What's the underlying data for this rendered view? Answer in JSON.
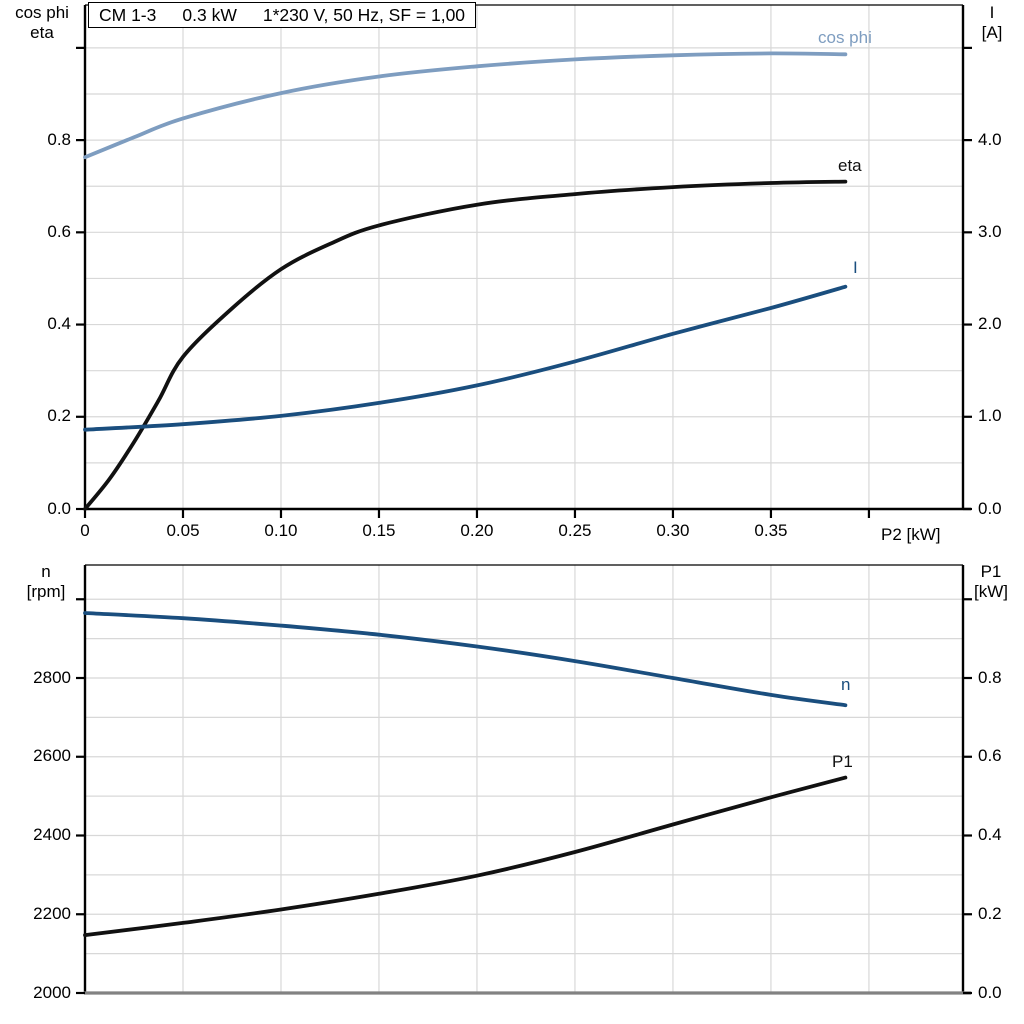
{
  "title_box": {
    "parts": [
      "CM 1-3",
      "0.3 kW",
      "1*230 V, 50 Hz, SF = 1,00"
    ]
  },
  "colors": {
    "light_blue": "#7e9dc0",
    "dark_blue": "#1a4e7e",
    "black": "#111111",
    "grid": "#d8d8d8",
    "axis": "#000000",
    "baseline_gray": "#828282",
    "background": "#ffffff"
  },
  "chart_data": [
    {
      "type": "line",
      "title": "",
      "x_axis": {
        "label": "P2 [kW]",
        "min": 0,
        "max": 0.448,
        "tick_values": [
          0,
          0.05,
          0.1,
          0.15,
          0.2,
          0.25,
          0.3,
          0.35
        ],
        "tick_labels": [
          "0",
          "0.05",
          "0.10",
          "0.15",
          "0.20",
          "0.25",
          "0.30",
          "0.35"
        ],
        "unlabeled_tick_values": [
          0.4
        ],
        "grid_values": [
          0.05,
          0.1,
          0.15,
          0.2,
          0.25,
          0.3,
          0.35,
          0.4
        ]
      },
      "y_left": {
        "label_lines": [
          "cos phi",
          "eta"
        ],
        "min": 0,
        "max": 1.093,
        "tick_values": [
          0,
          0.2,
          0.4,
          0.6,
          0.8
        ],
        "tick_labels": [
          "0.0",
          "0.2",
          "0.4",
          "0.6",
          "0.8"
        ],
        "unlabeled_tick_values": [
          1.0
        ],
        "grid_values": [
          0.1,
          0.2,
          0.3,
          0.4,
          0.5,
          0.6,
          0.7,
          0.8,
          0.9,
          1.0
        ]
      },
      "y_right": {
        "label_lines": [
          "I",
          "[A]"
        ],
        "min": 0,
        "max": 5.465,
        "tick_values": [
          0,
          1,
          2,
          3,
          4
        ],
        "tick_labels": [
          "0.0",
          "1.0",
          "2.0",
          "3.0",
          "4.0"
        ],
        "unlabeled_tick_values": [
          5.0
        ]
      },
      "baseline": "axis",
      "series": [
        {
          "name": "cos phi",
          "axis": "left",
          "color_key": "light_blue",
          "x": [
            0,
            0.025,
            0.05,
            0.1,
            0.15,
            0.2,
            0.25,
            0.3,
            0.35,
            0.388
          ],
          "y": [
            0.763,
            0.806,
            0.847,
            0.902,
            0.938,
            0.96,
            0.975,
            0.984,
            0.988,
            0.986
          ]
        },
        {
          "name": "eta",
          "axis": "left",
          "color_key": "black",
          "x": [
            0,
            0.0125,
            0.025,
            0.0375,
            0.05,
            0.075,
            0.1,
            0.125,
            0.15,
            0.2,
            0.25,
            0.3,
            0.35,
            0.388
          ],
          "y": [
            0,
            0.065,
            0.145,
            0.235,
            0.33,
            0.435,
            0.52,
            0.575,
            0.615,
            0.66,
            0.683,
            0.698,
            0.707,
            0.71
          ]
        },
        {
          "name": "I",
          "axis": "right",
          "color_key": "dark_blue",
          "x": [
            0,
            0.05,
            0.1,
            0.15,
            0.2,
            0.25,
            0.3,
            0.35,
            0.388
          ],
          "y": [
            0.86,
            0.92,
            1.01,
            1.15,
            1.34,
            1.6,
            1.9,
            2.18,
            2.41
          ]
        }
      ]
    },
    {
      "type": "line",
      "title": "",
      "x_axis": {
        "label": "",
        "min": 0,
        "max": 0.448,
        "tick_values": [],
        "tick_labels": [],
        "unlabeled_tick_values": [],
        "grid_values": [
          0.05,
          0.1,
          0.15,
          0.2,
          0.25,
          0.3,
          0.35,
          0.4
        ]
      },
      "y_left": {
        "label_lines": [
          "n",
          "[rpm]"
        ],
        "min": 2000,
        "max": 3087,
        "tick_values": [
          2000,
          2200,
          2400,
          2600,
          2800
        ],
        "tick_labels": [
          "2000",
          "2200",
          "2400",
          "2600",
          "2800"
        ],
        "unlabeled_tick_values": [
          3000
        ],
        "grid_values": [
          2100,
          2200,
          2300,
          2400,
          2500,
          2600,
          2700,
          2800,
          2900,
          3000
        ]
      },
      "y_right": {
        "label_lines": [
          "P1",
          "[kW]"
        ],
        "min": 0,
        "max": 1.087,
        "tick_values": [
          0,
          0.2,
          0.4,
          0.6,
          0.8
        ],
        "tick_labels": [
          "0.0",
          "0.2",
          "0.4",
          "0.6",
          "0.8"
        ],
        "unlabeled_tick_values": [
          1.0
        ]
      },
      "baseline": "baseline_gray",
      "series": [
        {
          "name": "n",
          "axis": "left",
          "color_key": "dark_blue",
          "x": [
            0,
            0.05,
            0.1,
            0.15,
            0.2,
            0.25,
            0.3,
            0.35,
            0.388
          ],
          "y": [
            2965,
            2952,
            2933,
            2910,
            2880,
            2843,
            2800,
            2757,
            2731
          ]
        },
        {
          "name": "P1",
          "axis": "right",
          "color_key": "black",
          "x": [
            0,
            0.05,
            0.1,
            0.15,
            0.2,
            0.25,
            0.3,
            0.35,
            0.388
          ],
          "y": [
            0.147,
            0.178,
            0.212,
            0.252,
            0.298,
            0.358,
            0.428,
            0.497,
            0.547
          ]
        }
      ]
    }
  ]
}
